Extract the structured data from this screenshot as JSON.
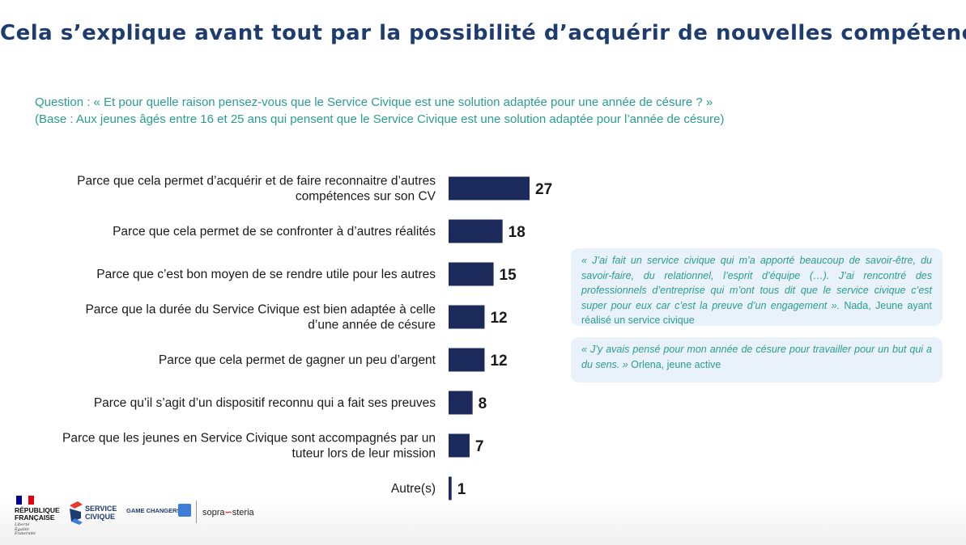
{
  "title": "Cela s’explique avant tout par la possibilité d’acquérir de nouvelles compétences",
  "question": {
    "line1": "Question : « Et pour quelle raison pensez-vous que le Service Civique est une solution adaptée pour une année de césure ?  »",
    "line2": "(Base : Aux jeunes âgés entre 16 et 25 ans qui pensent que le Service Civique est une solution adaptée pour l’année de césure)"
  },
  "colors": {
    "title": "#1f3c6e",
    "bar": "#1b2a5b",
    "question": "#2a9d8f",
    "quote_bg": "#e9f1fa"
  },
  "chart_data": {
    "type": "bar",
    "orientation": "horizontal",
    "categories": [
      [
        "Parce que cela permet d’acquérir et de faire reconnaitre d’autres",
        "compétences sur son CV"
      ],
      [
        "Parce que cela permet de se confronter à d’autres réalités"
      ],
      [
        "Parce que c’est bon moyen de se rendre utile pour les autres"
      ],
      [
        "Parce que la durée du Service Civique est bien adaptée à celle",
        "d’une année de césure"
      ],
      [
        "Parce que cela permet de gagner un peu d’argent"
      ],
      [
        "Parce qu’il s’agit d’un dispositif reconnu qui a fait ses preuves"
      ],
      [
        "Parce que les jeunes en Service Civique sont accompagnés par un",
        "tuteur lors de leur mission"
      ],
      [
        "Autre(s)"
      ]
    ],
    "values": [
      27,
      18,
      15,
      12,
      12,
      8,
      7,
      1
    ],
    "xlim": [
      0,
      27
    ],
    "grid": false,
    "legend": "none"
  },
  "quotes": [
    {
      "text": "« J’ai fait un service civique qui m’a apporté beaucoup de savoir-être, du savoir-faire, du relationnel, l’esprit d’équipe (…). J’ai rencontré des professionnels d’entreprise qui m’ont tous dit que le service civique c’est super pour eux car c’est la preuve d’un engagement ».",
      "author": " Nada, Jeune ayant réalisé un service civique"
    },
    {
      "text": "« J’y avais pensé pour mon année de césure pour travailler pour un but qui a du sens. »",
      "author": " Orlena, jeune active"
    }
  ],
  "logos": {
    "rf_name": "RÉPUBLIQUE\nFRANÇAISE",
    "rf_motto": "Liberté\nÉgalité\nFraternité",
    "sc_name": "SERVICE\nCIVIQUE",
    "gc_name": "GAME CHANGERS",
    "ss_part1": "sopra",
    "ss_part2": "steria"
  }
}
